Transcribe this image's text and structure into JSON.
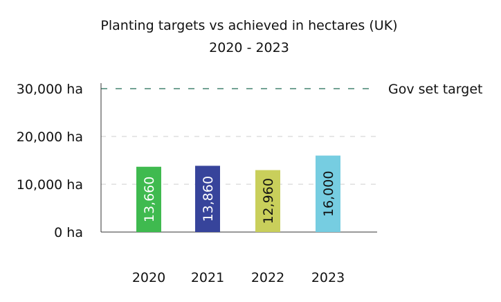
{
  "chart_data": {
    "type": "bar",
    "title": "Planting targets vs achieved in hectares (UK)",
    "subtitle": "2020 - 2023",
    "xlabel": "",
    "ylabel": "",
    "categories": [
      "2020",
      "2021",
      "2022",
      "2023"
    ],
    "values": [
      13660,
      13860,
      12960,
      16000
    ],
    "value_labels": [
      "13,660",
      "13,860",
      "12,960",
      "16,000"
    ],
    "bar_colors": [
      "#3fba4f",
      "#37449b",
      "#c9cf5b",
      "#76cde1"
    ],
    "label_dark": [
      false,
      false,
      true,
      true
    ],
    "ylim": [
      0,
      30000
    ],
    "yticks": [
      0,
      10000,
      20000,
      30000
    ],
    "ytick_labels": [
      "0 ha",
      "10,000 ha",
      "20,000 ha",
      "30,000 ha"
    ],
    "grid": true,
    "target": {
      "value": 30000,
      "label": "Gov set target",
      "color": "#1f6b55"
    }
  }
}
